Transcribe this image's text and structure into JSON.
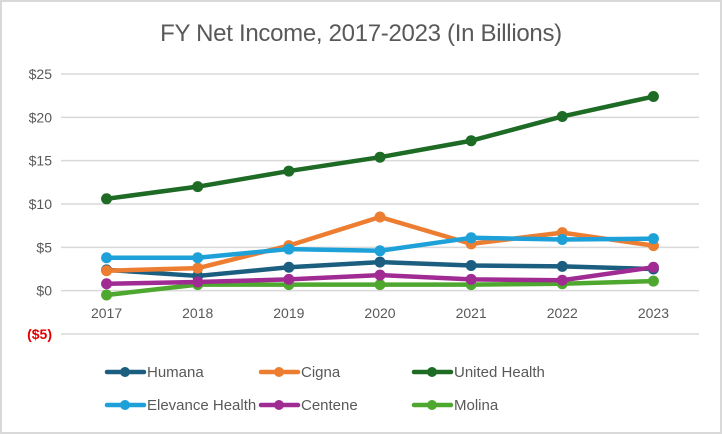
{
  "chart_data": {
    "type": "line",
    "title": "FY Net Income, 2017-2023 (In Billions)",
    "xlabel": "",
    "ylabel": "",
    "categories": [
      "2017",
      "2018",
      "2019",
      "2020",
      "2021",
      "2022",
      "2023"
    ],
    "ylim": [
      -5,
      25
    ],
    "yticks": [
      25,
      20,
      15,
      10,
      5,
      0,
      -5
    ],
    "ytick_labels": [
      "$25",
      "$20",
      "$15",
      "$10",
      "$5",
      "$0",
      "($5)"
    ],
    "negative_tick_color": "#e00000",
    "grid": true,
    "legend_position": "bottom",
    "series": [
      {
        "name": "Humana",
        "color": "#1b5e80",
        "values": [
          2.4,
          1.7,
          2.7,
          3.3,
          2.9,
          2.8,
          2.5
        ]
      },
      {
        "name": "Cigna",
        "color": "#ed7d31",
        "values": [
          2.3,
          2.6,
          5.2,
          8.5,
          5.4,
          6.7,
          5.2
        ]
      },
      {
        "name": "United Health",
        "color": "#1e6b25",
        "values": [
          10.6,
          12.0,
          13.8,
          15.4,
          17.3,
          20.1,
          22.4
        ]
      },
      {
        "name": "Elevance Health",
        "color": "#1ea1d9",
        "values": [
          3.8,
          3.8,
          4.8,
          4.6,
          6.1,
          5.9,
          6.0
        ]
      },
      {
        "name": "Centene",
        "color": "#a02b93",
        "values": [
          0.8,
          1.0,
          1.3,
          1.8,
          1.3,
          1.2,
          2.7
        ]
      },
      {
        "name": "Molina",
        "color": "#4ea72e",
        "values": [
          -0.5,
          0.7,
          0.7,
          0.7,
          0.7,
          0.8,
          1.1
        ]
      }
    ]
  }
}
